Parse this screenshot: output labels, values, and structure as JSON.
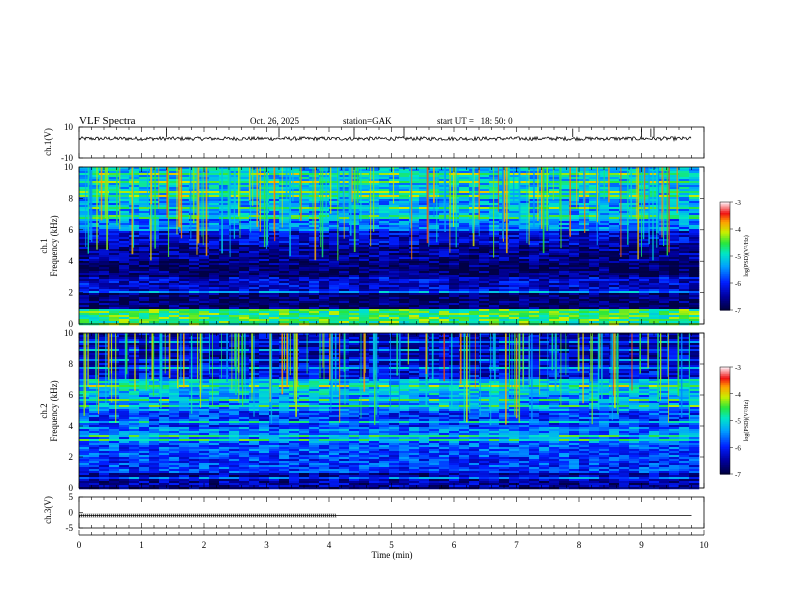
{
  "header": {
    "title": "VLF Spectra",
    "date": "Oct. 26, 2025",
    "station": "station=GAK",
    "start": "start UT =   18: 50: 0"
  },
  "colorbar": {
    "label": "log(PSD)(V²/Hz)",
    "ticks": [
      "-3",
      "-4",
      "-5",
      "-6",
      "-7"
    ]
  },
  "chart_data": [
    {
      "type": "line",
      "panel": "ch1-waveform",
      "ylabel": "ch.1(V)",
      "ylim": [
        -10,
        10
      ],
      "yticks": [
        "10",
        "-10"
      ],
      "x": [
        0,
        9.8
      ],
      "baseline_value": 2.5,
      "spikes_at_min": [
        1.4,
        3.2,
        4.4,
        5.2,
        7.9,
        9.0,
        9.15,
        9.2
      ]
    },
    {
      "type": "heatmap",
      "panel": "ch1-spectrogram",
      "ylabel": "ch.1\nFrequency (kHz)",
      "ylim": [
        0,
        10
      ],
      "yticks": [
        "0",
        "2",
        "4",
        "6",
        "8",
        "10"
      ],
      "xlim": [
        0,
        10
      ],
      "color_scale": [
        -7,
        -3
      ],
      "band_levels_log_psd": [
        {
          "freq_khz": [
            0,
            1
          ],
          "level": -4.6
        },
        {
          "freq_khz": [
            1,
            2
          ],
          "level": -6.8
        },
        {
          "freq_khz": [
            2,
            3
          ],
          "level": -6.3
        },
        {
          "freq_khz": [
            3,
            4
          ],
          "level": -6.8
        },
        {
          "freq_khz": [
            4,
            5
          ],
          "level": -6.6
        },
        {
          "freq_khz": [
            5,
            6
          ],
          "level": -6.3
        },
        {
          "freq_khz": [
            6,
            7
          ],
          "level": -5.6
        },
        {
          "freq_khz": [
            7,
            8
          ],
          "level": -5.4
        },
        {
          "freq_khz": [
            8,
            10
          ],
          "level": -5.2
        }
      ]
    },
    {
      "type": "heatmap",
      "panel": "ch2-spectrogram",
      "ylabel": "ch.2\nFrequency (kHz)",
      "ylim": [
        0,
        10
      ],
      "yticks": [
        "0",
        "2",
        "4",
        "6",
        "8",
        "10"
      ],
      "xlim": [
        0,
        10
      ],
      "color_scale": [
        -7,
        -3
      ],
      "band_levels_log_psd": [
        {
          "freq_khz": [
            0,
            1
          ],
          "level": -6.5
        },
        {
          "freq_khz": [
            1,
            2
          ],
          "level": -5.9
        },
        {
          "freq_khz": [
            2,
            3
          ],
          "level": -5.8
        },
        {
          "freq_khz": [
            3,
            4
          ],
          "level": -5.6
        },
        {
          "freq_khz": [
            4,
            5
          ],
          "level": -5.9
        },
        {
          "freq_khz": [
            5,
            6
          ],
          "level": -5.5
        },
        {
          "freq_khz": [
            6,
            7
          ],
          "level": -5.2
        },
        {
          "freq_khz": [
            7,
            8
          ],
          "level": -6.2
        },
        {
          "freq_khz": [
            8,
            10
          ],
          "level": -6.4
        }
      ]
    },
    {
      "type": "line",
      "panel": "ch3-waveform",
      "ylabel": "ch.3(V)",
      "ylim": [
        -5,
        5
      ],
      "yticks": [
        "5",
        "0",
        "-5"
      ],
      "x": [
        0,
        9.8
      ],
      "value": -1,
      "noisy_segment_min": [
        0,
        4.1
      ]
    }
  ],
  "xaxis": {
    "label": "Time (min)",
    "ticks": [
      "0",
      "1",
      "2",
      "3",
      "4",
      "5",
      "6",
      "7",
      "8",
      "9",
      "10"
    ],
    "xlim": [
      0,
      10
    ]
  }
}
